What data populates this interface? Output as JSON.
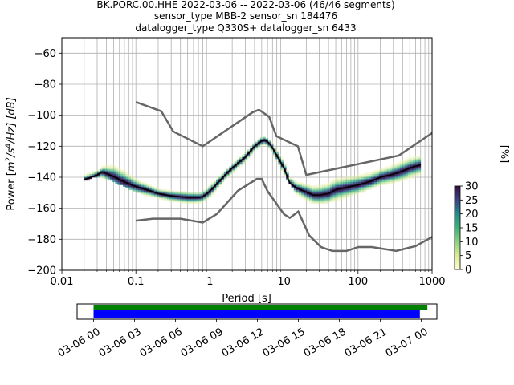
{
  "chart_data": [
    {
      "type": "heatmap",
      "title_lines": [
        "BK.PORC.00.HHE   2022-03-06 -- 2022-03-06  (46/46 segments)",
        "sensor_type MBB-2 sensor_sn 184476",
        "datalogger_type Q330S+ datalogger_sn 6433"
      ],
      "xlabel": "Period [s]",
      "ylabel": "Power [m²/s⁴/Hz] [dB]",
      "ylabel_parts": {
        "pre": "Power [",
        "base1": "m",
        "sup1": "2",
        "mid": "/s",
        "sup2": "4",
        "post": "/Hz] [dB]"
      },
      "x_scale": "log",
      "xlim": [
        0.01,
        1000
      ],
      "ylim": [
        -200,
        -50
      ],
      "x_ticks": [
        0.01,
        0.1,
        1,
        10,
        100,
        1000
      ],
      "x_tick_labels": [
        "0.01",
        "0.1",
        "1",
        "10",
        "100",
        "1000"
      ],
      "y_ticks": [
        -200,
        -180,
        -160,
        -140,
        -120,
        -100,
        -80,
        -60
      ],
      "y_tick_labels": [
        "−200",
        "−180",
        "−160",
        "−140",
        "−120",
        "−100",
        "−80",
        "−60"
      ],
      "grid": true,
      "colorbar": {
        "label": "[%]",
        "range": [
          0,
          30
        ],
        "ticks": [
          "0",
          "5",
          "10",
          "15",
          "20",
          "25",
          "30"
        ],
        "colormap": "viridis-like (light yellow to dark purple)"
      },
      "mode_curve": {
        "name": "mode",
        "color": "#000000",
        "x": [
          0.02,
          0.025,
          0.03,
          0.035,
          0.05,
          0.07,
          0.1,
          0.15,
          0.2,
          0.3,
          0.5,
          0.7,
          0.8,
          1.0,
          1.5,
          2,
          3,
          4,
          5,
          5.5,
          6,
          7,
          8,
          10,
          12,
          15,
          20,
          25,
          30,
          40,
          50,
          70,
          100,
          150,
          200,
          300,
          400,
          500,
          700
        ],
        "y": [
          -141.5,
          -140,
          -138.5,
          -136.5,
          -139.5,
          -143,
          -146,
          -148.5,
          -150.5,
          -152,
          -153,
          -153,
          -152.5,
          -149,
          -140,
          -134,
          -127,
          -120,
          -116.5,
          -116,
          -117,
          -121,
          -126,
          -134,
          -144,
          -147,
          -149.5,
          -151.5,
          -151.5,
          -150.5,
          -148,
          -146.5,
          -145,
          -142.5,
          -140,
          -138,
          -136,
          -134,
          -132
        ]
      },
      "noise_models": [
        {
          "name": "NHNM",
          "color": "#666666",
          "x": [
            0.1,
            0.22,
            0.32,
            0.8,
            3.8,
            4.6,
            6.3,
            7.9,
            15.4,
            20,
            354.8,
            1000
          ],
          "y": [
            -91.5,
            -97.4,
            -110.5,
            -120,
            -98,
            -96.5,
            -101,
            -113.5,
            -120,
            -138.5,
            -126,
            -111.5
          ]
        },
        {
          "name": "NLNM",
          "color": "#666666",
          "x": [
            0.1,
            0.17,
            0.4,
            0.8,
            1.24,
            2.4,
            4.3,
            5.0,
            6.0,
            10,
            12,
            15.6,
            21.9,
            31.6,
            45,
            70,
            101,
            154,
            328,
            600,
            1000
          ],
          "y": [
            -168,
            -166.7,
            -166.7,
            -169.2,
            -163.7,
            -148.6,
            -141.1,
            -141.1,
            -149,
            -163.8,
            -166.2,
            -162.1,
            -177.5,
            -185,
            -187.5,
            -187.5,
            -185,
            -185,
            -187.5,
            -184.4,
            -178.5
          ]
        }
      ],
      "heatmap_band": {
        "x": [
          0.02,
          0.03,
          0.05,
          0.07,
          0.1,
          0.2,
          0.3,
          0.5,
          0.8,
          1,
          2,
          3,
          5,
          7,
          10,
          15,
          20,
          30,
          50,
          100,
          200,
          400,
          700
        ],
        "low": [
          -142,
          -139,
          -142,
          -146,
          -149,
          -154,
          -157,
          -159,
          -158,
          -154,
          -138,
          -130,
          -120,
          -124,
          -138,
          -151,
          -156,
          -157,
          -155,
          -150,
          -145,
          -142,
          -139
        ],
        "high": [
          -137,
          -134,
          -126,
          -130,
          -138,
          -147,
          -149,
          -150,
          -150,
          -145,
          -132,
          -124,
          -114,
          -117,
          -128,
          -142,
          -144,
          -143,
          -139,
          -136,
          -133,
          -127,
          -125
        ]
      }
    },
    {
      "type": "timeline",
      "x_tick_labels": [
        "03-06 00",
        "03-06 03",
        "03-06 06",
        "03-06 09",
        "03-06 12",
        "03-06 15",
        "03-06 18",
        "03-06 21",
        "03-07 00"
      ],
      "bars": [
        {
          "name": "data",
          "color": "#008000",
          "start_hours": 0.0,
          "end_hours": 24.45
        },
        {
          "name": "psd",
          "color": "#0000ff",
          "start_hours": 0.0,
          "end_hours": 23.9
        }
      ]
    }
  ]
}
